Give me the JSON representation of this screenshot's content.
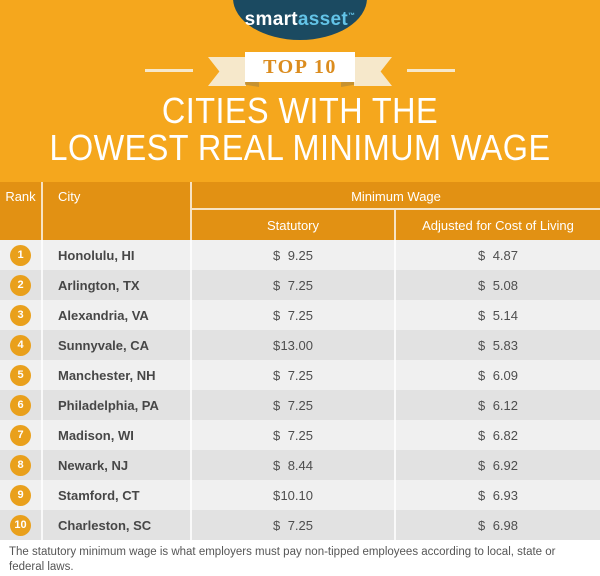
{
  "theme": {
    "bg": "#F5A71D",
    "header": "#E29113",
    "badge": "#E9A01C",
    "navy": "#1B4A61",
    "logo_blue": "#63C3E7",
    "cream": "#F6E8CB",
    "fold": "#BD8E35",
    "row_light": "#F0F0F0",
    "row_dark": "#E2E2E2",
    "text": "#4E4E4E",
    "ribbon_text": "#DB8C1E",
    "white": "#FFFFFF"
  },
  "logo": {
    "brand_first": "smart",
    "brand_second": "asset",
    "trademark": "™"
  },
  "ribbon": {
    "label": "TOP 10"
  },
  "title": {
    "line1": "CITIES WITH THE",
    "line2": "LOWEST REAL MINIMUM WAGE"
  },
  "table": {
    "currency": "$",
    "headers": {
      "rank": "Rank",
      "city": "City",
      "group": "Minimum Wage",
      "statutory": "Statutory",
      "adjusted": "Adjusted for Cost of Living"
    },
    "rows": [
      {
        "rank": "1",
        "city": "Honolulu, HI",
        "statutory": "9.25",
        "adjusted": "4.87"
      },
      {
        "rank": "2",
        "city": "Arlington, TX",
        "statutory": "7.25",
        "adjusted": "5.08"
      },
      {
        "rank": "3",
        "city": "Alexandria, VA",
        "statutory": "7.25",
        "adjusted": "5.14"
      },
      {
        "rank": "4",
        "city": "Sunnyvale, CA",
        "statutory": "13.00",
        "adjusted": "5.83"
      },
      {
        "rank": "5",
        "city": "Manchester, NH",
        "statutory": "7.25",
        "adjusted": "6.09"
      },
      {
        "rank": "6",
        "city": "Philadelphia, PA",
        "statutory": "7.25",
        "adjusted": "6.12"
      },
      {
        "rank": "7",
        "city": "Madison, WI",
        "statutory": "7.25",
        "adjusted": "6.82"
      },
      {
        "rank": "8",
        "city": "Newark, NJ",
        "statutory": "8.44",
        "adjusted": "6.92"
      },
      {
        "rank": "9",
        "city": "Stamford, CT",
        "statutory": "10.10",
        "adjusted": "6.93"
      },
      {
        "rank": "10",
        "city": "Charleston, SC",
        "statutory": "7.25",
        "adjusted": "6.98"
      }
    ]
  },
  "footer": {
    "note": "The statutory minimum wage is what employers must pay non-tipped employees according to local, state or federal laws."
  },
  "chart_data": {
    "type": "table",
    "title": "Top 10 Cities with the Lowest Real Minimum Wage",
    "columns": [
      "Rank",
      "City",
      "Statutory Minimum Wage ($)",
      "Minimum Wage Adjusted for Cost of Living ($)"
    ],
    "rows": [
      [
        1,
        "Honolulu, HI",
        9.25,
        4.87
      ],
      [
        2,
        "Arlington, TX",
        7.25,
        5.08
      ],
      [
        3,
        "Alexandria, VA",
        7.25,
        5.14
      ],
      [
        4,
        "Sunnyvale, CA",
        13.0,
        5.83
      ],
      [
        5,
        "Manchester, NH",
        7.25,
        6.09
      ],
      [
        6,
        "Philadelphia, PA",
        7.25,
        6.12
      ],
      [
        7,
        "Madison, WI",
        7.25,
        6.82
      ],
      [
        8,
        "Newark, NJ",
        8.44,
        6.92
      ],
      [
        9,
        "Stamford, CT",
        10.1,
        6.93
      ],
      [
        10,
        "Charleston, SC",
        7.25,
        6.98
      ]
    ]
  }
}
